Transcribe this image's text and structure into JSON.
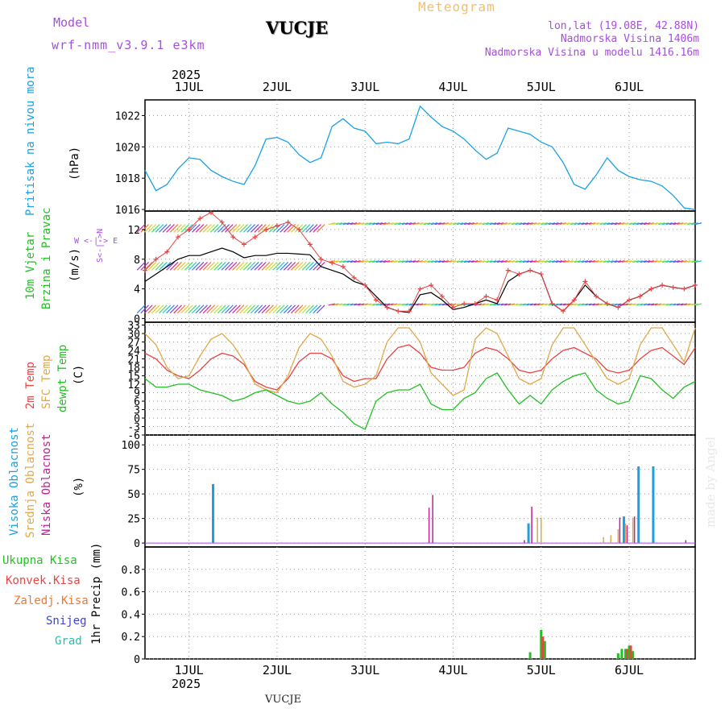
{
  "header": {
    "model_label": "Model",
    "model_name": "wrf-nmm_v3.9.1 e3km",
    "title": "VUCJE",
    "chart_name": "Meteogram",
    "lonlat": "lon,lat (19.08E, 42.88N)",
    "altitude": "Nadmorska Visina 1406m",
    "model_altitude": "Nadmorska Visina u modelu 1416.16m"
  },
  "credit": "made by Angel",
  "footer": "VUCJE",
  "axis_x": {
    "year": "2025",
    "days": [
      "1JUL",
      "2JUL",
      "3JUL",
      "4JUL",
      "5JUL",
      "6JUL"
    ]
  },
  "panel_labels": {
    "pressure": [
      "Pritisak na nivou mora",
      "(hPa)"
    ],
    "wind": [
      "10m Vjetar",
      "Brzina i Pravac",
      "(m/s)"
    ],
    "wind_compass": [
      "W  <-|->  E",
      "S<-|->N"
    ],
    "temp": [
      "2m Temp",
      "SFC Temp",
      "dewpt Temp",
      "(C)"
    ],
    "cloud": [
      "Visoka Oblacnost",
      "Srednja Oblacnost",
      "Niska Oblacnost",
      "(%)"
    ],
    "precip": [
      "Ukupna Kisa",
      "Konvek.Kisa",
      "Zaledj.Kisa",
      "Snijeg",
      "Grad",
      "1hr Precip (mm)"
    ]
  },
  "colors": {
    "pressure": "#1aa0e6",
    "temp2m": "#e84545",
    "sfc": "#e0a84a",
    "dewpt": "#22c022",
    "high_cloud": "#1aa0e6",
    "mid_cloud": "#e0a84a",
    "low_cloud": "#c0209a",
    "rain_total": "#22c022",
    "rain_conv": "#e84545",
    "rain_freez": "#f07830",
    "snow": "#4040e0",
    "hail": "#20c0b0",
    "wind_line": "#000000",
    "gust": "#e84545"
  },
  "chart_data": [
    {
      "type": "line",
      "name": "pressure",
      "title": "Pritisak na nivou mora",
      "ylabel": "(hPa)",
      "ylim": [
        1015.9,
        1023.0
      ],
      "yticks": [
        1016,
        1018,
        1020,
        1022
      ],
      "x_hours": [
        0,
        3,
        6,
        9,
        12,
        15,
        18,
        21,
        24,
        27,
        30,
        33,
        36,
        39,
        42,
        45,
        48,
        51,
        54,
        57,
        60,
        63,
        66,
        69,
        72,
        75,
        78,
        81,
        84,
        87,
        90,
        93,
        96,
        99,
        102,
        105,
        108,
        111,
        114,
        117,
        120,
        123,
        126,
        129,
        132,
        135,
        138,
        141,
        144,
        147,
        150
      ],
      "values": [
        1018.5,
        1017.2,
        1017.6,
        1018.6,
        1019.3,
        1019.2,
        1018.5,
        1018.1,
        1017.8,
        1017.6,
        1018.8,
        1020.5,
        1020.6,
        1020.3,
        1019.5,
        1019.0,
        1019.3,
        1021.3,
        1021.8,
        1021.2,
        1021.0,
        1020.2,
        1020.3,
        1020.2,
        1020.5,
        1022.6,
        1021.9,
        1021.3,
        1021.0,
        1020.5,
        1019.8,
        1019.2,
        1019.6,
        1021.2,
        1021.0,
        1020.8,
        1020.3,
        1020.0,
        1019.0,
        1017.6,
        1017.3,
        1018.2,
        1019.3,
        1018.5,
        1018.1,
        1017.9,
        1017.8,
        1017.5,
        1016.9,
        1016.1,
        1016.0
      ]
    },
    {
      "type": "line",
      "name": "wind",
      "title": "10m Vjetar Brzina i Pravac",
      "ylabel": "(m/s)",
      "ylim": [
        -0.5,
        14.5
      ],
      "yticks": [
        0,
        4,
        8,
        12
      ],
      "series": [
        {
          "name": "speed",
          "values": [
            5.0,
            6.0,
            7.0,
            8.0,
            8.5,
            8.5,
            9.0,
            9.5,
            9.0,
            8.2,
            8.5,
            8.5,
            8.8,
            8.8,
            8.7,
            8.6,
            7.0,
            6.5,
            6.0,
            5.0,
            4.5,
            3.0,
            1.5,
            1.0,
            0.8,
            3.2,
            3.5,
            2.5,
            1.2,
            1.5,
            2.0,
            2.5,
            2.0,
            5.0,
            6.0,
            6.5,
            6.0,
            2.0,
            1.0,
            2.5,
            4.5,
            3.0,
            2.0,
            1.5,
            2.5,
            3.0,
            4.0,
            4.5,
            4.2,
            4.0,
            4.5
          ]
        },
        {
          "name": "gust",
          "values": [
            6.5,
            8.0,
            9.0,
            11.0,
            12.0,
            13.5,
            15.0,
            13.0,
            11.0,
            10.0,
            11.0,
            12.0,
            12.5,
            13.0,
            12.0,
            10.0,
            8.0,
            7.5,
            7.0,
            5.5,
            4.5,
            2.5,
            1.5,
            1.0,
            1.0,
            4.0,
            4.5,
            3.0,
            1.5,
            2.0,
            2.0,
            3.0,
            2.5,
            6.5,
            6.0,
            6.5,
            6.0,
            2.0,
            1.0,
            2.5,
            5.0,
            3.0,
            2.0,
            1.5,
            2.5,
            3.0,
            4.0,
            4.5,
            4.2,
            4.0,
            4.5
          ]
        }
      ]
    },
    {
      "type": "line",
      "name": "temperature",
      "title": "2m Temp / SFC Temp / dewpt Temp",
      "ylabel": "(C)",
      "ylim": [
        -6,
        34
      ],
      "yticks": [
        -6,
        -3,
        0,
        3,
        6,
        9,
        12,
        15,
        18,
        21,
        24,
        27,
        30,
        33
      ],
      "series": [
        {
          "name": "2m Temp",
          "values": [
            23,
            21,
            17,
            15,
            14,
            17,
            21,
            23,
            22,
            19,
            13,
            11,
            10,
            14,
            20,
            23,
            23,
            21,
            15,
            13,
            14,
            14,
            21,
            25,
            26,
            23,
            18,
            17,
            17,
            18,
            23,
            25,
            24,
            21,
            17,
            16,
            17,
            21,
            24,
            25,
            23,
            21,
            17,
            16,
            17,
            21,
            24,
            25,
            22,
            19,
            25
          ]
        },
        {
          "name": "SFC Temp",
          "values": [
            30,
            26,
            18,
            14,
            15,
            22,
            28,
            30,
            26,
            20,
            12,
            10,
            9,
            15,
            25,
            30,
            28,
            22,
            13,
            11,
            12,
            15,
            27,
            32,
            32,
            27,
            16,
            12,
            8,
            10,
            28,
            32,
            30,
            22,
            14,
            12,
            14,
            26,
            32,
            32,
            26,
            20,
            14,
            12,
            14,
            26,
            32,
            32,
            26,
            20,
            32
          ]
        },
        {
          "name": "dewpt Temp",
          "values": [
            14,
            11,
            11,
            12,
            12,
            10,
            9,
            8,
            6,
            7,
            9,
            10,
            8,
            6,
            5,
            6,
            9,
            5,
            2,
            -2,
            -4,
            6,
            9,
            10,
            10,
            12,
            5,
            3,
            3,
            7,
            9,
            14,
            16,
            10,
            5,
            8,
            5,
            10,
            13,
            15,
            16,
            10,
            7,
            5,
            6,
            15,
            14,
            10,
            7,
            11,
            13
          ]
        }
      ]
    },
    {
      "type": "bar",
      "name": "cloud",
      "title": "Oblacnost",
      "ylabel": "(%)",
      "ylim": [
        -4,
        110
      ],
      "yticks": [
        0,
        25,
        50,
        75,
        100
      ],
      "series": [
        {
          "name": "Visoka Oblacnost",
          "points": [
            [
              19,
              60
            ],
            [
              105,
              20
            ],
            [
              131,
              27
            ],
            [
              135,
              78
            ],
            [
              139,
              78
            ],
            [
              146,
              0
            ]
          ]
        },
        {
          "name": "Srednja Oblacnost",
          "points": [
            [
              107,
              26
            ],
            [
              108,
              26
            ],
            [
              125,
              6
            ],
            [
              127,
              8
            ],
            [
              129,
              14
            ],
            [
              131,
              20
            ],
            [
              133,
              26
            ]
          ]
        },
        {
          "name": "Niska Oblacnost",
          "points": [
            [
              77,
              36
            ],
            [
              78,
              49
            ],
            [
              103,
              3
            ],
            [
              105,
              37
            ],
            [
              129,
              26
            ],
            [
              131,
              18
            ],
            [
              133,
              27
            ],
            [
              147,
              3
            ]
          ]
        }
      ]
    },
    {
      "type": "bar",
      "name": "precip",
      "title": "1hr Precip",
      "ylabel": "1hr Precip (mm)",
      "ylim": [
        0,
        1.0
      ],
      "yticks": [
        0,
        0.2,
        0.4,
        0.6,
        0.8
      ],
      "series": [
        {
          "name": "Ukupna Kisa",
          "points": [
            [
              105,
              0.06
            ],
            [
              108,
              0.26
            ],
            [
              109,
              0.16
            ],
            [
              129,
              0.05
            ],
            [
              130,
              0.09
            ],
            [
              131,
              0.09
            ],
            [
              132,
              0.12
            ],
            [
              133,
              0.07
            ]
          ]
        },
        {
          "name": "Konvek.Kisa",
          "points": [
            [
              108,
              0.2
            ],
            [
              131,
              0.09
            ],
            [
              132,
              0.12
            ]
          ]
        }
      ]
    }
  ]
}
